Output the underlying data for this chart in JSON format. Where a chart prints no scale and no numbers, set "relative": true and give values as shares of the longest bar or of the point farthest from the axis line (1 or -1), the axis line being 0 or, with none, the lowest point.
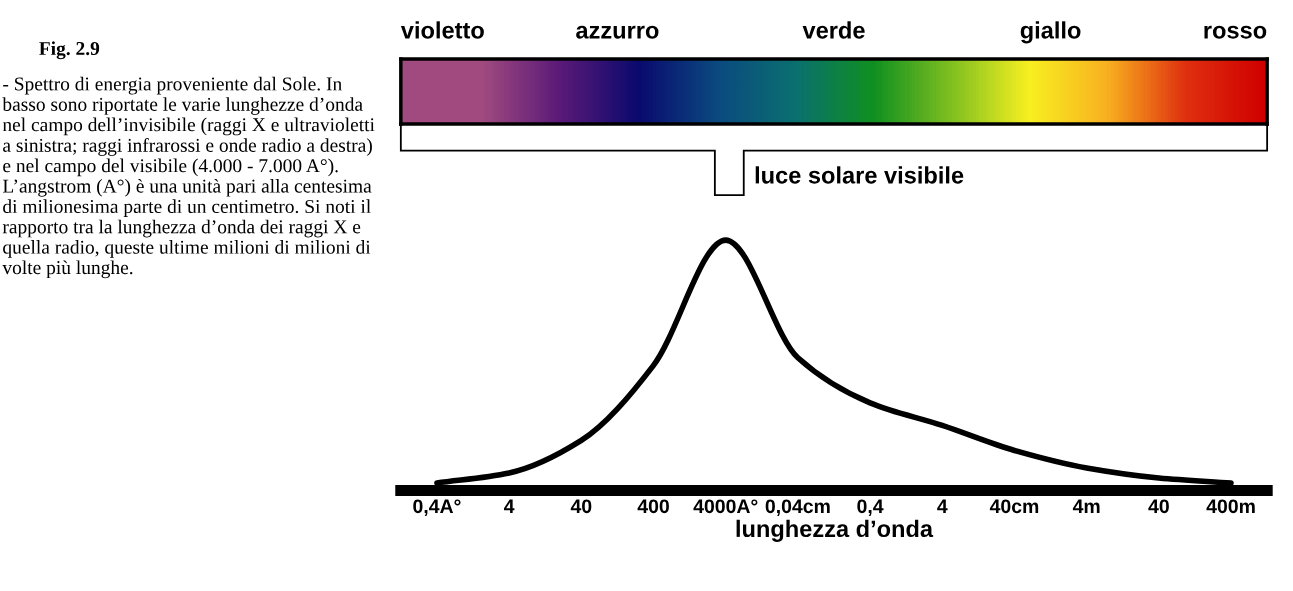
{
  "chart_data": {
    "type": "line",
    "relative": true,
    "title": "Fig. 2.9",
    "xlabel": "lunghezza d’onda",
    "annotations": [
      "violetto",
      "azzurro",
      "verde",
      "giallo",
      "rosso",
      "luce solare visibile",
      "- Spettro di energia proveniente dal Sole. In basso sono riportate le varie lunghezze d’onda nel campo dell’invisibile (raggi X e ultravioletti a sinistra; raggi infrarossi e onde radio a destra) e nel campo del visibile (4.000 - 7.000 A°). L’angstrom (A°) è una unità pari alla centesima di milionesima parte di un centimetro. Si noti il rapporto tra la lunghezza d’onda dei raggi X e quella radio, queste ultime milioni di milioni di volte più lunghe."
    ],
    "categories": [
      "0,4A°",
      "4",
      "40",
      "400",
      "4000A°",
      "0,04cm",
      "0,4",
      "4",
      "40cm",
      "4m",
      "40",
      "400m"
    ],
    "series": [
      {
        "color": "#000000",
        "values": [
          0.03,
          0.07,
          0.2,
          0.5,
          1,
          0.53,
          0.35,
          0.26,
          0.16,
          0.09,
          0.05,
          0.03
        ]
      }
    ],
    "grid": false,
    "legend": false,
    "line_style": "solid",
    "marker": "none"
  }
}
